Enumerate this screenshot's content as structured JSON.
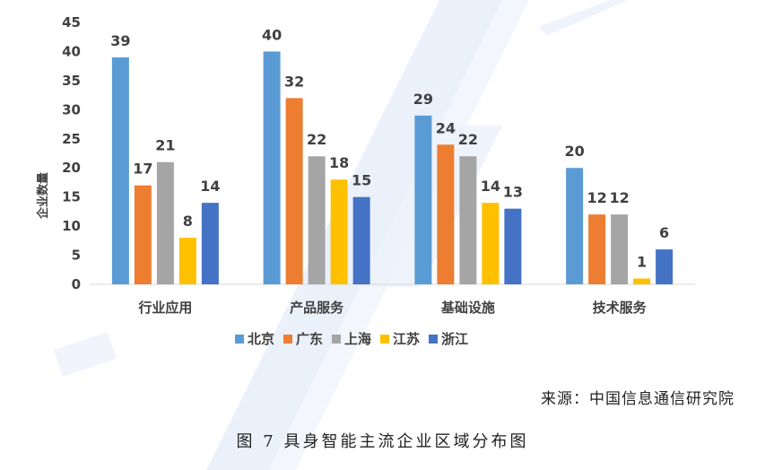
{
  "chart_data": {
    "type": "bar",
    "categories": [
      "行业应用",
      "产品服务",
      "基础设施",
      "技术服务"
    ],
    "series": [
      {
        "name": "北京",
        "color": "#5B9BD5",
        "values": [
          39,
          40,
          29,
          20
        ]
      },
      {
        "name": "广东",
        "color": "#ED7D31",
        "values": [
          17,
          32,
          24,
          12
        ]
      },
      {
        "name": "上海",
        "color": "#A5A5A5",
        "values": [
          21,
          22,
          22,
          12
        ]
      },
      {
        "name": "江苏",
        "color": "#FFC000",
        "values": [
          8,
          18,
          14,
          1
        ]
      },
      {
        "name": "浙江",
        "color": "#4472C4",
        "values": [
          14,
          15,
          13,
          6
        ]
      }
    ],
    "ylabel": "企业数量",
    "ylim": [
      0,
      45
    ],
    "yticks": [
      0,
      5,
      10,
      15,
      20,
      25,
      30,
      35,
      40,
      45
    ],
    "grid": false,
    "legend": "bottom"
  },
  "source_text": "来源：中国信息通信研究院",
  "caption_text": "图 7 具身智能主流企业区域分布图"
}
